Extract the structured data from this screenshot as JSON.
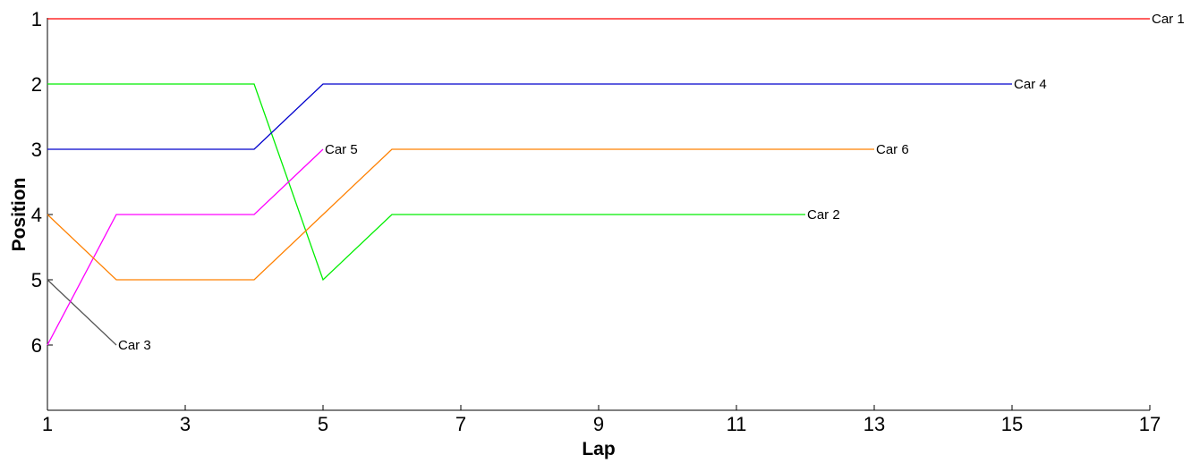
{
  "chart_data": {
    "type": "line",
    "title": "",
    "xlabel": "Lap",
    "ylabel": "Position",
    "xlim": [
      1,
      17
    ],
    "ylim": [
      1,
      7
    ],
    "y_inverted": true,
    "grid": false,
    "legend": "none",
    "x_ticks": [
      "1",
      "3",
      "5",
      "7",
      "9",
      "11",
      "13",
      "15",
      "17"
    ],
    "y_ticks": [
      "1",
      "2",
      "3",
      "4",
      "5",
      "6"
    ],
    "series": [
      {
        "name": "Car 1",
        "color": "#ff0000",
        "x": [
          1,
          17
        ],
        "y": [
          1,
          1
        ]
      },
      {
        "name": "Car 2",
        "color": "#00ee00",
        "x": [
          1,
          2,
          3,
          4,
          5,
          6,
          7,
          8,
          9,
          10,
          11,
          12
        ],
        "y": [
          2,
          2,
          2,
          2,
          5,
          4,
          4,
          4,
          4,
          4,
          4,
          4
        ]
      },
      {
        "name": "Car 3",
        "color": "#555555",
        "x": [
          1,
          2
        ],
        "y": [
          5,
          6
        ]
      },
      {
        "name": "Car 4",
        "color": "#0000cc",
        "x": [
          1,
          2,
          3,
          4,
          5,
          6,
          7,
          8,
          9,
          10,
          11,
          12,
          13,
          14,
          15
        ],
        "y": [
          3,
          3,
          3,
          3,
          2,
          2,
          2,
          2,
          2,
          2,
          2,
          2,
          2,
          2,
          2
        ]
      },
      {
        "name": "Car 5",
        "color": "#ff00ff",
        "x": [
          1,
          2,
          3,
          4,
          5
        ],
        "y": [
          6,
          4,
          4,
          4,
          3
        ]
      },
      {
        "name": "Car 6",
        "color": "#ff8000",
        "x": [
          1,
          2,
          3,
          4,
          5,
          6,
          7,
          8,
          9,
          10,
          11,
          12,
          13
        ],
        "y": [
          4,
          5,
          5,
          5,
          4,
          3,
          3,
          3,
          3,
          3,
          3,
          3,
          3
        ]
      }
    ]
  }
}
